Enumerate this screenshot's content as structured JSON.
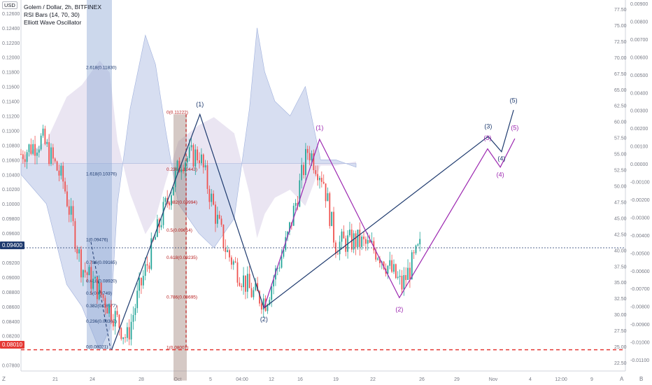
{
  "header": {
    "symbol_line": "Golem / Dollar, 2h, BITFINEX",
    "indicator_1": "RSI Bars (14, 70, 30)",
    "indicator_2": "Elliott Wave Oscillator",
    "currency_badge": "USD"
  },
  "price_labels": {
    "current": "0.09400",
    "stop": "0.08010"
  },
  "corner_labels": {
    "bottom_left": "Z",
    "bottom_right_a": "A",
    "bottom_right_b": "B"
  },
  "colors": {
    "bull_candle": "#26a69a",
    "bear_candle": "#ef5350",
    "wave_navy": "#1e3a6e",
    "wave_purple": "#9c27b0",
    "oscillator_fill": "#b7c3e6",
    "stop_line": "#e53935",
    "current_line": "#1e3a6e",
    "fib_box_blue": "#8fa9d4",
    "fib_box_red": "#a1887f"
  },
  "chart_data": {
    "type": "candlestick",
    "left_axis": {
      "ticks": [
        "0.12600",
        "0.12400",
        "0.12200",
        "0.12000",
        "0.11800",
        "0.11600",
        "0.11400",
        "0.11200",
        "0.11000",
        "0.10800",
        "0.10600",
        "0.10400",
        "0.10200",
        "0.10000",
        "0.09800",
        "0.09600",
        "0.09200",
        "0.09000",
        "0.08800",
        "0.08600",
        "0.08400",
        "0.08200",
        "0.07800"
      ],
      "ylim": [
        0.0772,
        0.1278
      ]
    },
    "right_axis_rsi": {
      "ticks": [
        "77.50",
        "75.00",
        "72.50",
        "70.00",
        "67.50",
        "65.00",
        "62.50",
        "60.00",
        "57.50",
        "55.00",
        "52.50",
        "50.00",
        "47.50",
        "45.00",
        "42.50",
        "40.00",
        "37.50",
        "35.00",
        "32.50",
        "30.00",
        "27.50",
        "25.00",
        "22.50"
      ]
    },
    "right_axis_ewo": {
      "ticks": [
        "0.00900",
        "0.00800",
        "0.00700",
        "0.00600",
        "0.00500",
        "0.00400",
        "0.00300",
        "0.00200",
        "0.00100",
        "0.00000",
        "-0.00100",
        "-0.00200",
        "-0.00300",
        "-0.00400",
        "-0.00500",
        "-0.00600",
        "-0.00700",
        "-0.00800",
        "-0.00900",
        "-0.01000",
        "-0.01100"
      ]
    },
    "x_axis": {
      "ticks": [
        "21",
        "24",
        "28",
        "Oct",
        "5",
        "04:00",
        "12",
        "16",
        "19",
        "22",
        "26",
        "29",
        "Nov",
        "4",
        "12:00",
        "9"
      ]
    },
    "series": [
      {
        "label_pts": [
          {
            "x": 0.0,
            "y": 0.1068
          },
          {
            "x": 0.035,
            "y": 0.1088
          },
          {
            "x": 0.07,
            "y": 0.103
          },
          {
            "x": 0.1,
            "y": 0.0915
          },
          {
            "x": 0.13,
            "y": 0.088
          },
          {
            "x": 0.16,
            "y": 0.084
          },
          {
            "x": 0.175,
            "y": 0.0815
          },
          {
            "x": 0.195,
            "y": 0.088
          },
          {
            "x": 0.23,
            "y": 0.0975
          },
          {
            "x": 0.265,
            "y": 0.106
          },
          {
            "x": 0.295,
            "y": 0.1068
          },
          {
            "x": 0.32,
            "y": 0.099
          },
          {
            "x": 0.34,
            "y": 0.0935
          },
          {
            "x": 0.38,
            "y": 0.088
          },
          {
            "x": 0.405,
            "y": 0.0868
          },
          {
            "x": 0.44,
            "y": 0.095
          },
          {
            "x": 0.475,
            "y": 0.1075
          },
          {
            "x": 0.5,
            "y": 0.1035
          },
          {
            "x": 0.52,
            "y": 0.0945
          },
          {
            "x": 0.555,
            "y": 0.095
          },
          {
            "x": 0.59,
            "y": 0.0935
          },
          {
            "x": 0.63,
            "y": 0.0888
          },
          {
            "x": 0.66,
            "y": 0.094
          }
        ]
      }
    ],
    "oscillator_envelope": [
      {
        "x": 0.0,
        "y": 0.104
      },
      {
        "x": 0.05,
        "y": 0.1
      },
      {
        "x": 0.09,
        "y": 0.089
      },
      {
        "x": 0.12,
        "y": 0.086
      },
      {
        "x": 0.155,
        "y": 0.08
      },
      {
        "x": 0.175,
        "y": 0.083
      },
      {
        "x": 0.19,
        "y": 0.1
      },
      {
        "x": 0.215,
        "y": 0.113
      },
      {
        "x": 0.245,
        "y": 0.123
      },
      {
        "x": 0.265,
        "y": 0.119
      },
      {
        "x": 0.285,
        "y": 0.11
      },
      {
        "x": 0.31,
        "y": 0.1
      },
      {
        "x": 0.35,
        "y": 0.096
      },
      {
        "x": 0.38,
        "y": 0.094
      },
      {
        "x": 0.42,
        "y": 0.098
      },
      {
        "x": 0.45,
        "y": 0.113
      },
      {
        "x": 0.465,
        "y": 0.124
      },
      {
        "x": 0.48,
        "y": 0.118
      },
      {
        "x": 0.5,
        "y": 0.114
      },
      {
        "x": 0.53,
        "y": 0.112
      },
      {
        "x": 0.56,
        "y": 0.116
      },
      {
        "x": 0.59,
        "y": 0.106
      },
      {
        "x": 0.62,
        "y": 0.106
      },
      {
        "x": 0.66,
        "y": 0.105
      }
    ],
    "wave_labels": [
      {
        "text": "(1)",
        "color": "navy",
        "x": 0.296,
        "y": 0.1133
      },
      {
        "text": "(2)",
        "color": "navy",
        "x": 0.402,
        "y": 0.084
      },
      {
        "text": "(3)",
        "color": "navy",
        "x": 0.773,
        "y": 0.1103
      },
      {
        "text": "(5)",
        "color": "navy",
        "x": 0.815,
        "y": 0.1138
      },
      {
        "text": "(4)",
        "color": "navy",
        "x": 0.795,
        "y": 0.1059
      },
      {
        "text": "(1)",
        "color": "purple",
        "x": 0.494,
        "y": 0.1101
      },
      {
        "text": "(2)",
        "color": "purple",
        "x": 0.626,
        "y": 0.0853
      },
      {
        "text": "(3)",
        "color": "purple",
        "x": 0.772,
        "y": 0.1087
      },
      {
        "text": "(4)",
        "color": "purple",
        "x": 0.793,
        "y": 0.1037
      },
      {
        "text": "(5)",
        "color": "purple",
        "x": 0.817,
        "y": 0.1101
      }
    ],
    "fib_labels_blue": [
      {
        "text": "2.618(0.11830)",
        "y": 0.1183
      },
      {
        "text": "1.618(0.10376)",
        "y": 0.1038
      },
      {
        "text": "1(0.09476)",
        "y": 0.0948
      },
      {
        "text": "0.786(0.09165)",
        "y": 0.0917
      },
      {
        "text": "0.618(0.08920)",
        "y": 0.0892
      },
      {
        "text": "0.5(0.08749)",
        "y": 0.0875
      },
      {
        "text": "0.382(0.08577)",
        "y": 0.0858
      },
      {
        "text": "0.236(0.08365)",
        "y": 0.0837
      },
      {
        "text": "0(0.08021)",
        "y": 0.0802
      }
    ],
    "fib_labels_red": [
      {
        "text": "0(0.11222)",
        "y": 0.1122
      },
      {
        "text": "0.236(0.10443)",
        "y": 0.1044
      },
      {
        "text": "0.382(0.09994)",
        "y": 0.0999
      },
      {
        "text": "0.5(0.09614)",
        "y": 0.0961
      },
      {
        "text": "0.618(0.09235)",
        "y": 0.0924
      },
      {
        "text": "0.786(0.08695)",
        "y": 0.087
      },
      {
        "text": "1(0.08007)",
        "y": 0.0801
      }
    ]
  }
}
